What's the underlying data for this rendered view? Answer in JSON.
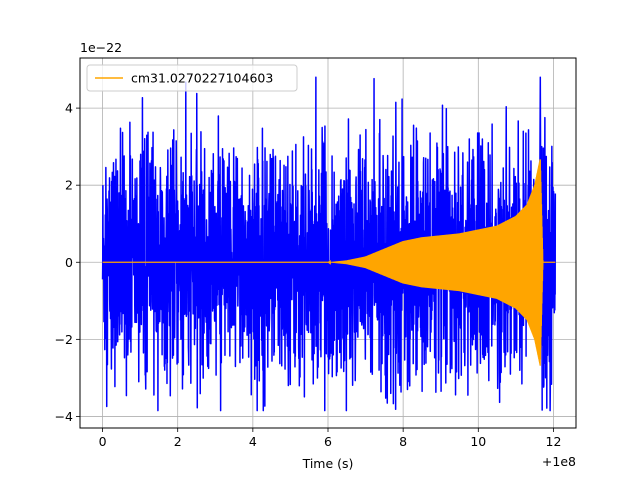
{
  "chart_data": {
    "type": "line",
    "title": "",
    "xlabel": "Time (s)",
    "ylabel": "",
    "x_offset_label": "+1e8",
    "y_scale_label": "1e−22",
    "xlim": [
      -0.6,
      12.6
    ],
    "ylim": [
      -4.3,
      5.3
    ],
    "x_ticks": [
      0,
      2,
      4,
      6,
      8,
      10,
      12
    ],
    "x_tick_labels": [
      "0",
      "2",
      "4",
      "6",
      "8",
      "10",
      "12"
    ],
    "y_ticks": [
      -4,
      -2,
      0,
      2,
      4
    ],
    "y_tick_labels": [
      "−4",
      "−2",
      "0",
      "2",
      "4"
    ],
    "grid": true,
    "legend_position": "upper-left",
    "series": [
      {
        "role": "noise",
        "color": "#0000ff",
        "x_range": [
          0,
          12.05
        ],
        "typical_amplitude": 2.3,
        "max_value": 4.8,
        "min_value": -3.85
      },
      {
        "name": "cm31.0270227104603",
        "role": "chirp",
        "color": "#ffa500",
        "x_range": [
          0,
          12.05
        ],
        "envelope": [
          [
            6.0,
            0.0
          ],
          [
            6.5,
            0.05
          ],
          [
            7.0,
            0.15
          ],
          [
            7.5,
            0.35
          ],
          [
            8.0,
            0.55
          ],
          [
            8.5,
            0.65
          ],
          [
            9.0,
            0.7
          ],
          [
            9.5,
            0.75
          ],
          [
            10.0,
            0.85
          ],
          [
            10.5,
            0.95
          ],
          [
            11.0,
            1.2
          ],
          [
            11.3,
            1.5
          ],
          [
            11.5,
            2.0
          ],
          [
            11.65,
            2.7
          ],
          [
            11.72,
            0.0
          ]
        ]
      }
    ]
  }
}
